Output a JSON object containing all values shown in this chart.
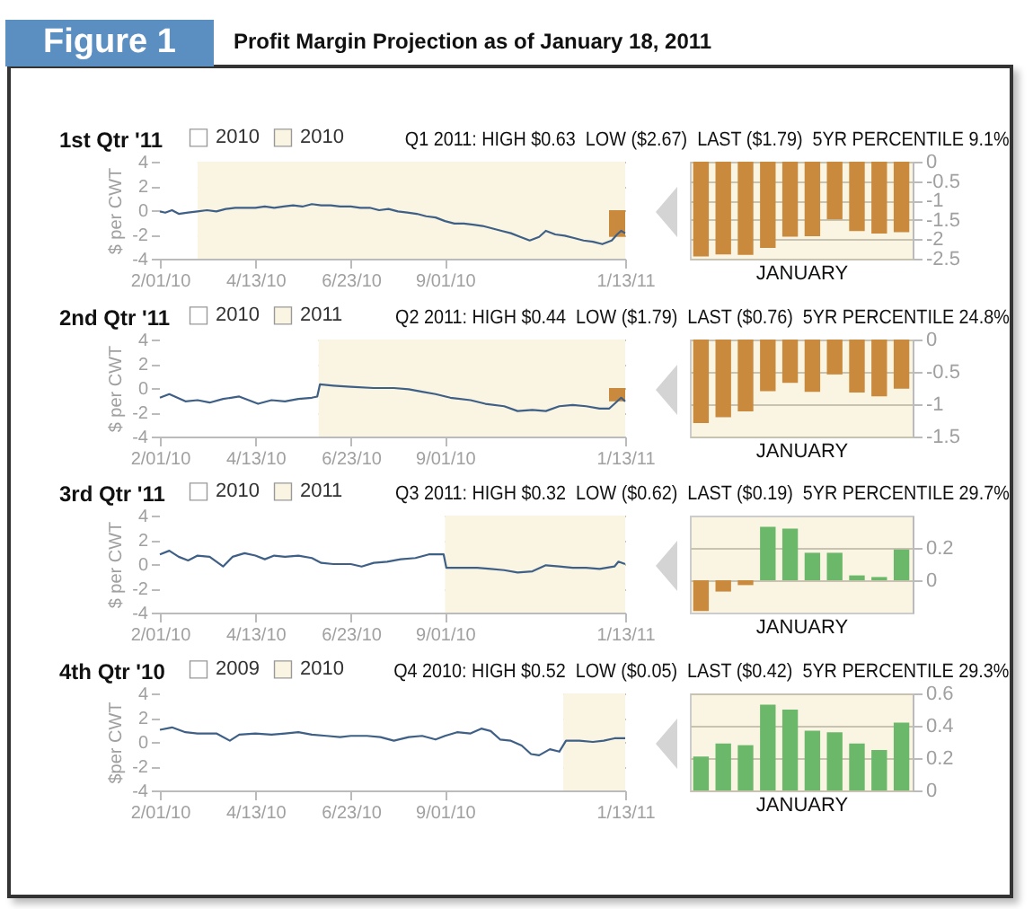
{
  "chart_data": [
    {
      "type": "line",
      "title": "1st Qtr '11",
      "subtitle": "Q1 2011: HIGH $0.63  LOW ($2.67)  LAST ($1.79)  5YR PERCENTILE 9.1%",
      "annotations": [
        "Figure 1",
        "Profit Margin Projection as of January 18, 2011"
      ],
      "ylabel": "$ per CWT",
      "xlim": [
        "2010-02-01",
        "2011-01-13"
      ],
      "xticks": [
        {
          "value": "2010-02-01",
          "label": "2/01/10"
        },
        {
          "value": "2010-04-13",
          "label": "4/13/10"
        },
        {
          "value": "2010-06-23",
          "label": "6/23/10"
        },
        {
          "value": "2010-09-01",
          "label": "9/01/10"
        },
        {
          "value": "2011-01-13",
          "label": "1/13/11"
        }
      ],
      "ylim": [
        -4,
        4
      ],
      "yticks": [
        -4,
        -2,
        0,
        2,
        4
      ],
      "grid": "y",
      "legend": "top left",
      "bands": [
        {
          "axis": "x",
          "from": "2010-02-01",
          "to": "2010-03-01",
          "label": "2010",
          "color": "#ffffff"
        },
        {
          "axis": "x",
          "from": "2010-03-01",
          "to": "2011-01-13",
          "label": "2010",
          "color": "#faf5e2"
        }
      ],
      "series": [
        {
          "color": "#3e5f86",
          "x": [
            "2010-02-01",
            "2010-02-05",
            "2010-02-10",
            "2010-02-15",
            "2010-02-22",
            "2010-03-01",
            "2010-03-08",
            "2010-03-15",
            "2010-03-22",
            "2010-03-29",
            "2010-04-05",
            "2010-04-13",
            "2010-04-20",
            "2010-04-27",
            "2010-05-04",
            "2010-05-11",
            "2010-05-18",
            "2010-05-25",
            "2010-06-01",
            "2010-06-08",
            "2010-06-15",
            "2010-06-23",
            "2010-06-30",
            "2010-07-07",
            "2010-07-14",
            "2010-07-21",
            "2010-07-28",
            "2010-08-04",
            "2010-08-11",
            "2010-08-18",
            "2010-08-25",
            "2010-09-01",
            "2010-09-08",
            "2010-09-15",
            "2010-09-22",
            "2010-09-29",
            "2010-10-06",
            "2010-10-13",
            "2010-10-20",
            "2010-10-27",
            "2010-11-03",
            "2010-11-10",
            "2010-11-15",
            "2010-11-22",
            "2010-11-29",
            "2010-12-06",
            "2010-12-13",
            "2010-12-20",
            "2010-12-27",
            "2011-01-03",
            "2011-01-07",
            "2011-01-10",
            "2011-01-13"
          ],
          "values": [
            -0.1,
            -0.2,
            0,
            -0.3,
            -0.2,
            -0.1,
            0,
            -0.1,
            0.1,
            0.2,
            0.2,
            0.2,
            0.3,
            0.2,
            0.3,
            0.4,
            0.3,
            0.5,
            0.4,
            0.4,
            0.3,
            0.3,
            0.2,
            0.2,
            0,
            0.1,
            -0.1,
            -0.2,
            -0.3,
            -0.5,
            -0.6,
            -0.9,
            -1.1,
            -1.1,
            -1.2,
            -1.3,
            -1.5,
            -1.7,
            -1.9,
            -2.2,
            -2.5,
            -2.2,
            -1.7,
            -2,
            -2.1,
            -2.3,
            -2.5,
            -2.6,
            -2.8,
            -2.5,
            -2,
            -1.7,
            -1.9
          ]
        },
        {
          "type": "bar",
          "color": "#c98a3e",
          "x": [
            "2011-01-07"
          ],
          "values": [
            -2.2
          ]
        }
      ]
    },
    {
      "type": "bar",
      "xlabel": "JANUARY",
      "categories": [
        null,
        null,
        null,
        null,
        null,
        null,
        null,
        null,
        null,
        null
      ],
      "values": [
        -2.44,
        -2.39,
        -2.4,
        -2.22,
        -1.93,
        -1.92,
        -1.49,
        -1.79,
        -1.85,
        -1.82
      ],
      "colors": [
        "#c98a3e",
        "#c98a3e",
        "#c98a3e",
        "#c98a3e",
        "#c98a3e",
        "#c98a3e",
        "#c98a3e",
        "#c98a3e",
        "#c98a3e",
        "#c98a3e"
      ],
      "ylim": [
        -2.5,
        0
      ],
      "yticks": [
        0,
        -0.5,
        -1,
        -1.5,
        -2,
        -2.5
      ],
      "grid": "y"
    },
    {
      "type": "line",
      "title": "2nd Qtr '11",
      "subtitle": "Q2 2011: HIGH $0.44  LOW ($1.79)  LAST ($0.76)  5YR PERCENTILE 24.8%",
      "ylabel": "$ per CWT",
      "xlim": [
        "2010-02-01",
        "2011-01-13"
      ],
      "xticks": [
        {
          "value": "2010-02-01",
          "label": "2/01/10"
        },
        {
          "value": "2010-04-13",
          "label": "4/13/10"
        },
        {
          "value": "2010-06-23",
          "label": "6/23/10"
        },
        {
          "value": "2010-09-01",
          "label": "9/01/10"
        },
        {
          "value": "2011-01-13",
          "label": "1/13/11"
        }
      ],
      "ylim": [
        -4,
        4
      ],
      "yticks": [
        -4,
        -2,
        0,
        2,
        4
      ],
      "grid": "y",
      "legend": "top left",
      "bands": [
        {
          "axis": "x",
          "from": "2010-02-01",
          "to": "2010-05-30",
          "label": "2010",
          "color": "#ffffff"
        },
        {
          "axis": "x",
          "from": "2010-05-30",
          "to": "2011-01-13",
          "label": "2011",
          "color": "#faf5e2"
        }
      ],
      "series": [
        {
          "color": "#3e5f86",
          "x": [
            "2010-02-01",
            "2010-02-08",
            "2010-02-20",
            "2010-03-01",
            "2010-03-10",
            "2010-03-20",
            "2010-04-01",
            "2010-04-15",
            "2010-04-25",
            "2010-05-05",
            "2010-05-15",
            "2010-05-25",
            "2010-05-29",
            "2010-05-31",
            "2010-06-10",
            "2010-06-23",
            "2010-07-10",
            "2010-07-25",
            "2010-08-05",
            "2010-08-15",
            "2010-08-25",
            "2010-09-05",
            "2010-09-20",
            "2010-10-01",
            "2010-10-15",
            "2010-10-25",
            "2010-11-05",
            "2010-11-15",
            "2010-11-25",
            "2010-12-05",
            "2010-12-15",
            "2010-12-25",
            "2011-01-01",
            "2011-01-06",
            "2011-01-10",
            "2011-01-13"
          ],
          "values": [
            -0.8,
            -0.5,
            -1.1,
            -1,
            -1.2,
            -0.9,
            -0.7,
            -1.3,
            -1,
            -1.1,
            -0.9,
            -0.8,
            -0.7,
            0.3,
            0.2,
            0.1,
            0,
            0,
            -0.1,
            -0.3,
            -0.5,
            -0.8,
            -1,
            -1.3,
            -1.5,
            -1.9,
            -1.8,
            -1.9,
            -1.5,
            -1.4,
            -1.5,
            -1.7,
            -1.7,
            -1.2,
            -0.8,
            -1.1
          ]
        },
        {
          "type": "bar",
          "color": "#c98a3e",
          "x": [
            "2011-01-07"
          ],
          "values": [
            -1.1
          ]
        }
      ]
    },
    {
      "type": "bar",
      "xlabel": "JANUARY",
      "categories": [
        null,
        null,
        null,
        null,
        null,
        null,
        null,
        null,
        null,
        null
      ],
      "values": [
        -1.29,
        -1.2,
        -1.11,
        -0.8,
        -0.67,
        -0.81,
        -0.54,
        -0.82,
        -0.88,
        -0.76
      ],
      "colors": [
        "#c98a3e",
        "#c98a3e",
        "#c98a3e",
        "#c98a3e",
        "#c98a3e",
        "#c98a3e",
        "#c98a3e",
        "#c98a3e",
        "#c98a3e",
        "#c98a3e"
      ],
      "ylim": [
        -1.5,
        0
      ],
      "yticks": [
        0,
        -0.5,
        -1,
        -1.5
      ],
      "grid": "y"
    },
    {
      "type": "line",
      "title": "3rd Qtr '11",
      "subtitle": "Q3 2011: HIGH $0.32  LOW ($0.62)  LAST ($0.19)  5YR PERCENTILE 29.7%",
      "ylabel": "$ per CWT",
      "xlim": [
        "2010-02-01",
        "2011-01-13"
      ],
      "xticks": [
        {
          "value": "2010-02-01",
          "label": "2/01/10"
        },
        {
          "value": "2010-04-13",
          "label": "4/13/10"
        },
        {
          "value": "2010-06-23",
          "label": "6/23/10"
        },
        {
          "value": "2010-09-01",
          "label": "9/01/10"
        },
        {
          "value": "2011-01-13",
          "label": "1/13/11"
        }
      ],
      "ylim": [
        -4,
        4
      ],
      "yticks": [
        -4,
        -2,
        0,
        2,
        4
      ],
      "grid": "y",
      "legend": "top left",
      "bands": [
        {
          "axis": "x",
          "from": "2010-02-01",
          "to": "2010-09-01",
          "label": "2010",
          "color": "#ffffff"
        },
        {
          "axis": "x",
          "from": "2010-09-01",
          "to": "2011-01-13",
          "label": "2011",
          "color": "#faf5e2"
        }
      ],
      "series": [
        {
          "color": "#3e5f86",
          "x": [
            "2010-02-01",
            "2010-02-08",
            "2010-02-15",
            "2010-02-22",
            "2010-03-01",
            "2010-03-10",
            "2010-03-20",
            "2010-03-27",
            "2010-04-05",
            "2010-04-13",
            "2010-04-20",
            "2010-04-27",
            "2010-05-05",
            "2010-05-15",
            "2010-05-25",
            "2010-06-01",
            "2010-06-10",
            "2010-06-23",
            "2010-07-01",
            "2010-07-10",
            "2010-07-20",
            "2010-07-30",
            "2010-08-10",
            "2010-08-20",
            "2010-08-31",
            "2010-09-02",
            "2010-09-15",
            "2010-09-25",
            "2010-10-05",
            "2010-10-15",
            "2010-10-25",
            "2010-11-05",
            "2010-11-15",
            "2010-11-25",
            "2010-12-05",
            "2010-12-15",
            "2010-12-25",
            "2011-01-05",
            "2011-01-08",
            "2011-01-13"
          ],
          "values": [
            0.8,
            1.1,
            0.6,
            0.3,
            0.7,
            0.6,
            -0.2,
            0.6,
            0.9,
            0.7,
            0.4,
            0.7,
            0.6,
            0.7,
            0.5,
            0.1,
            0,
            0,
            -0.2,
            0.1,
            0.2,
            0.4,
            0.5,
            0.8,
            0.8,
            -0.3,
            -0.3,
            -0.3,
            -0.4,
            -0.5,
            -0.7,
            -0.6,
            -0.1,
            -0.2,
            -0.3,
            -0.3,
            -0.4,
            -0.2,
            0.2,
            0
          ]
        }
      ]
    },
    {
      "type": "bar",
      "xlabel": "JANUARY",
      "categories": [
        null,
        null,
        null,
        null,
        null,
        null,
        null,
        null,
        null,
        null
      ],
      "values": [
        -0.19,
        -0.07,
        -0.03,
        0.33,
        0.32,
        0.17,
        0.17,
        0.03,
        0.02,
        0.19
      ],
      "colors": [
        "#c98a3e",
        "#c98a3e",
        "#c98a3e",
        "#6cb86b",
        "#6cb86b",
        "#6cb86b",
        "#6cb86b",
        "#6cb86b",
        "#6cb86b",
        "#6cb86b"
      ],
      "ylim": [
        -0.2,
        0.4
      ],
      "yticks": [
        0,
        0.2
      ],
      "grid": "y"
    },
    {
      "type": "line",
      "title": "4th Qtr '10",
      "subtitle": "Q4 2010: HIGH $0.52  LOW ($0.05)  LAST ($0.42)  5YR PERCENTILE 29.3%",
      "ylabel": "$per CWT",
      "xlim": [
        "2010-02-01",
        "2011-01-13"
      ],
      "xticks": [
        {
          "value": "2010-02-01",
          "label": "2/01/10"
        },
        {
          "value": "2010-04-13",
          "label": "4/13/10"
        },
        {
          "value": "2010-06-23",
          "label": "6/23/10"
        },
        {
          "value": "2010-09-01",
          "label": "9/01/10"
        },
        {
          "value": "2011-01-13",
          "label": "1/13/11"
        }
      ],
      "ylim": [
        -4,
        4
      ],
      "yticks": [
        -4,
        -2,
        0,
        2,
        4
      ],
      "grid": "y",
      "legend": "top left",
      "bands": [
        {
          "axis": "x",
          "from": "2010-02-01",
          "to": "2010-11-28",
          "label": "2009",
          "color": "#ffffff"
        },
        {
          "axis": "x",
          "from": "2010-11-28",
          "to": "2011-01-13",
          "label": "2010",
          "color": "#faf5e2"
        }
      ],
      "series": [
        {
          "color": "#3e5f86",
          "x": [
            "2010-02-01",
            "2010-02-10",
            "2010-02-20",
            "2010-03-01",
            "2010-03-15",
            "2010-03-25",
            "2010-04-01",
            "2010-04-13",
            "2010-04-25",
            "2010-05-05",
            "2010-05-15",
            "2010-05-25",
            "2010-06-05",
            "2010-06-15",
            "2010-06-23",
            "2010-07-05",
            "2010-07-15",
            "2010-07-25",
            "2010-08-05",
            "2010-08-15",
            "2010-08-25",
            "2010-09-01",
            "2010-09-10",
            "2010-09-20",
            "2010-09-28",
            "2010-10-05",
            "2010-10-12",
            "2010-10-20",
            "2010-10-28",
            "2010-11-04",
            "2010-11-10",
            "2010-11-18",
            "2010-11-25",
            "2010-11-30",
            "2010-12-10",
            "2010-12-20",
            "2010-12-28",
            "2011-01-05",
            "2011-01-13"
          ],
          "values": [
            1,
            1.2,
            0.8,
            0.7,
            0.7,
            0.1,
            0.6,
            0.7,
            0.6,
            0.7,
            0.8,
            0.6,
            0.5,
            0.4,
            0.5,
            0.5,
            0.4,
            0.1,
            0.4,
            0.5,
            0.2,
            0.5,
            0.8,
            0.7,
            1.1,
            0.9,
            0.2,
            0.1,
            -0.3,
            -1,
            -1.1,
            -0.6,
            -0.8,
            0.1,
            0.1,
            0,
            0.1,
            0.3,
            0.3
          ]
        }
      ]
    },
    {
      "type": "bar",
      "xlabel": "JANUARY",
      "categories": [
        null,
        null,
        null,
        null,
        null,
        null,
        null,
        null,
        null,
        null
      ],
      "values": [
        0.21,
        0.29,
        0.28,
        0.53,
        0.5,
        0.37,
        0.36,
        0.29,
        0.25,
        0.42
      ],
      "colors": [
        "#6cb86b",
        "#6cb86b",
        "#6cb86b",
        "#6cb86b",
        "#6cb86b",
        "#6cb86b",
        "#6cb86b",
        "#6cb86b",
        "#6cb86b",
        "#6cb86b"
      ],
      "ylim": [
        0,
        0.6
      ],
      "yticks": [
        0,
        0.2,
        0.4,
        0.6
      ],
      "grid": "y"
    }
  ]
}
